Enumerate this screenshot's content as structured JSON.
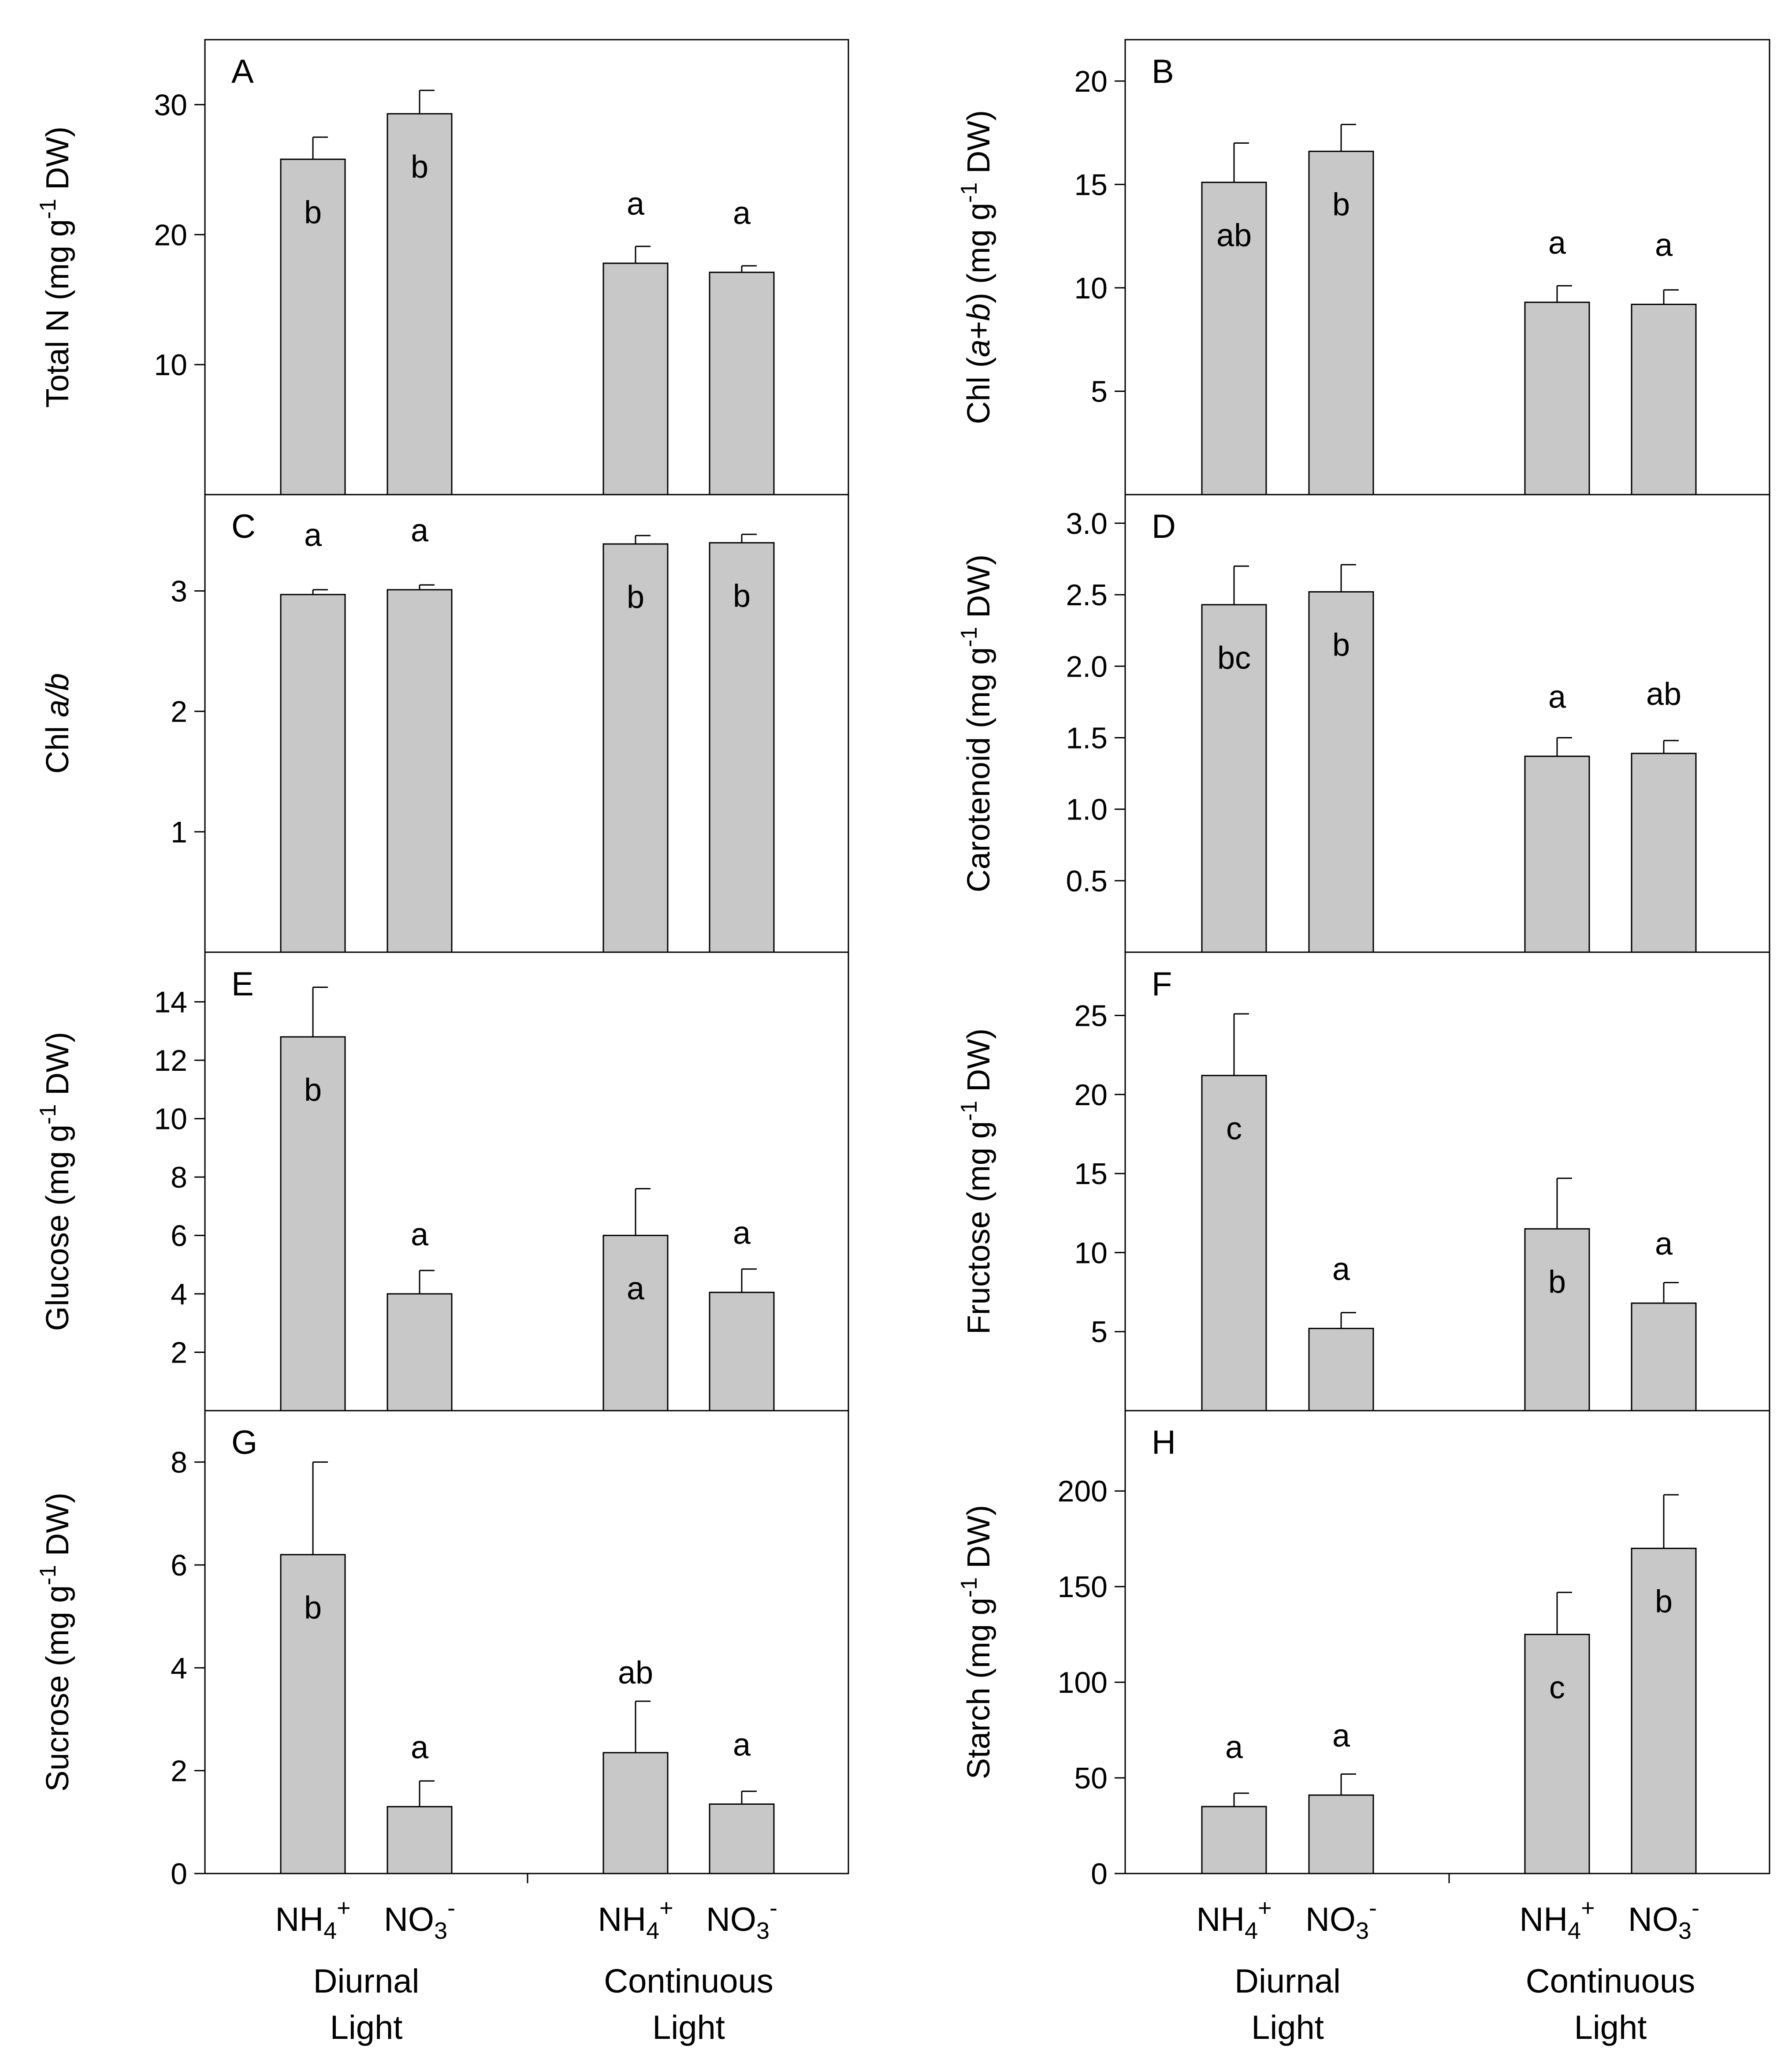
{
  "chart_data": [
    {
      "type": "bar",
      "panel": "A",
      "ylabel": "Total N  (mg g^-1 DW)",
      "ylim": [
        0,
        35
      ],
      "yticks": [
        10,
        20,
        30
      ],
      "values": [
        25.8,
        29.3,
        17.8,
        17.1
      ],
      "errors": [
        1.7,
        1.8,
        1.3,
        0.5
      ],
      "letters": [
        "b",
        "b",
        "a",
        "a"
      ],
      "letter_pos": [
        "inside",
        "inside",
        "above",
        "above"
      ]
    },
    {
      "type": "bar",
      "panel": "B",
      "ylabel": "Chl (a+b)  (mg g^-1 DW)",
      "ylim": [
        0,
        22
      ],
      "yticks": [
        5,
        10,
        15,
        20
      ],
      "values": [
        15.1,
        16.6,
        9.3,
        9.2
      ],
      "errors": [
        1.9,
        1.3,
        0.8,
        0.7
      ],
      "letters": [
        "ab",
        "b",
        "a",
        "a"
      ],
      "letter_pos": [
        "inside",
        "inside",
        "above",
        "above"
      ]
    },
    {
      "type": "bar",
      "panel": "C",
      "ylabel": "Chl a/b",
      "ylim": [
        0,
        3.8
      ],
      "yticks": [
        1,
        2,
        3
      ],
      "values": [
        2.97,
        3.01,
        3.39,
        3.4
      ],
      "errors": [
        0.04,
        0.04,
        0.07,
        0.07
      ],
      "letters": [
        "a",
        "a",
        "b",
        "b"
      ],
      "letter_pos": [
        "above",
        "above",
        "inside",
        "inside"
      ]
    },
    {
      "type": "bar",
      "panel": "D",
      "ylabel": "Carotenoid (mg g^-1 DW)",
      "ylim": [
        0,
        3.2
      ],
      "yticks": [
        0.5,
        1.0,
        1.5,
        2.0,
        2.5,
        3.0
      ],
      "values": [
        2.43,
        2.52,
        1.37,
        1.39
      ],
      "errors": [
        0.27,
        0.19,
        0.13,
        0.09
      ],
      "letters": [
        "bc",
        "b",
        "a",
        "ab"
      ],
      "letter_pos": [
        "inside",
        "inside",
        "above",
        "above"
      ]
    },
    {
      "type": "bar",
      "panel": "E",
      "ylabel": "Glucose (mg g^-1 DW)",
      "ylim": [
        0,
        15.7
      ],
      "yticks": [
        2,
        4,
        6,
        8,
        10,
        12,
        14
      ],
      "values": [
        12.8,
        4.0,
        6.0,
        4.05
      ],
      "errors": [
        1.7,
        0.8,
        1.6,
        0.8
      ],
      "letters": [
        "b",
        "a",
        "a",
        "a"
      ],
      "letter_pos": [
        "inside",
        "above",
        "inside",
        "above"
      ]
    },
    {
      "type": "bar",
      "panel": "F",
      "ylabel": "Fructose (mg g^-1 DW)",
      "ylim": [
        0,
        29
      ],
      "yticks": [
        5,
        10,
        15,
        20,
        25
      ],
      "values": [
        21.2,
        5.2,
        11.5,
        6.8
      ],
      "errors": [
        3.9,
        1.0,
        3.2,
        1.3
      ],
      "letters": [
        "c",
        "a",
        "b",
        "a"
      ],
      "letter_pos": [
        "inside",
        "above",
        "inside",
        "above"
      ]
    },
    {
      "type": "bar",
      "panel": "G",
      "ylabel": "Sucrose (mg g^-1 DW)",
      "ylim": [
        0,
        9
      ],
      "yticks": [
        0,
        2,
        4,
        6,
        8
      ],
      "values": [
        6.2,
        1.3,
        2.35,
        1.35
      ],
      "errors": [
        1.8,
        0.5,
        1.0,
        0.25
      ],
      "letters": [
        "b",
        "a",
        "ab",
        "a"
      ],
      "letter_pos": [
        "inside",
        "above",
        "above",
        "above"
      ]
    },
    {
      "type": "bar",
      "panel": "H",
      "ylabel": "Starch (mg g^-1 DW)",
      "ylim": [
        0,
        242
      ],
      "yticks": [
        0,
        50,
        100,
        150,
        200
      ],
      "values": [
        35,
        41,
        125,
        170
      ],
      "errors": [
        7,
        11,
        22,
        28
      ],
      "letters": [
        "a",
        "a",
        "c",
        "b"
      ],
      "letter_pos": [
        "above",
        "above",
        "inside",
        "inside"
      ]
    }
  ],
  "xaxis": {
    "categories": [
      {
        "base": "NH",
        "sub": "4",
        "sup": "+"
      },
      {
        "base": "NO",
        "sub": "3",
        "sup": "-"
      },
      {
        "base": "NH",
        "sub": "4",
        "sup": "+"
      },
      {
        "base": "NO",
        "sub": "3",
        "sup": "-"
      }
    ],
    "groups": [
      {
        "line1": "Diurnal",
        "line2": "Light"
      },
      {
        "line1": "Continuous",
        "line2": "Light"
      }
    ]
  },
  "colors": {
    "bar_fill": "#c8c8c8",
    "stroke": "#000000",
    "background": "#ffffff"
  }
}
